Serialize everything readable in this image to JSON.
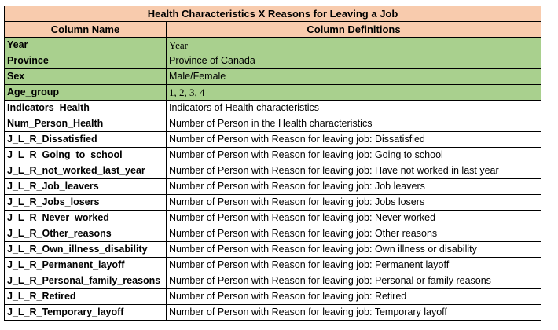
{
  "table": {
    "title": "Health Characteristics X Reasons for Leaving a Job",
    "headers": [
      "Column Name",
      "Column Definitions"
    ],
    "rows": [
      {
        "name": "Year",
        "definition": "Year",
        "highlight": true,
        "serif": true
      },
      {
        "name": "Province",
        "definition": "Province of Canada",
        "highlight": true,
        "serif": false
      },
      {
        "name": "Sex",
        "definition": "Male/Female",
        "highlight": true,
        "serif": false
      },
      {
        "name": "Age_group",
        "definition": "1, 2, 3, 4",
        "highlight": true,
        "serif": true
      },
      {
        "name": "Indicators_Health",
        "definition": "Indicators of Health characteristics",
        "highlight": false,
        "serif": false
      },
      {
        "name": "Num_Person_Health",
        "definition": "Number of Person in the Health characteristics",
        "highlight": false,
        "serif": false
      },
      {
        "name": "J_L_R_Dissatisfied",
        "definition": "Number of Person with Reason for leaving job: Dissatisfied",
        "highlight": false,
        "serif": false
      },
      {
        "name": "J_L_R_Going_to_school",
        "definition": "Number of Person with Reason for leaving job: Going to school",
        "highlight": false,
        "serif": false
      },
      {
        "name": "J_L_R_not_worked_last_year",
        "definition": "Number of Person with Reason for leaving job: Have not worked in last year",
        "highlight": false,
        "serif": false
      },
      {
        "name": "J_L_R_Job_leavers",
        "definition": "Number of Person with Reason for leaving job: Job leavers",
        "highlight": false,
        "serif": false
      },
      {
        "name": "J_L_R_Jobs_losers",
        "definition": "Number of Person with Reason for leaving job: Jobs losers",
        "highlight": false,
        "serif": false
      },
      {
        "name": "J_L_R_Never_worked",
        "definition": "Number of Person with Reason for leaving job: Never worked",
        "highlight": false,
        "serif": false
      },
      {
        "name": "J_L_R_Other_reasons",
        "definition": "Number of Person with Reason for leaving job: Other reasons",
        "highlight": false,
        "serif": false
      },
      {
        "name": "J_L_R_Own_illness_disability",
        "definition": "Number of Person with Reason for leaving job: Own illness or disability",
        "highlight": false,
        "serif": false
      },
      {
        "name": "J_L_R_Permanent_layoff",
        "definition": "Number of Person with Reason for leaving job: Permanent layoff",
        "highlight": false,
        "serif": false
      },
      {
        "name": "J_L_R_Personal_family_reasons",
        "definition": "Number of Person with Reason for leaving job: Personal or family reasons",
        "highlight": false,
        "serif": false
      },
      {
        "name": "J_L_R_Retired",
        "definition": "Number of Person with Reason for leaving job: Retired",
        "highlight": false,
        "serif": false
      },
      {
        "name": "J_L_R_Temporary_layoff",
        "definition": "Number of Person with Reason for leaving job: Temporary layoff",
        "highlight": false,
        "serif": false
      }
    ]
  },
  "colors": {
    "header_fill": "#f8cbad",
    "highlight_fill": "#a9d08e",
    "border": "#000000"
  }
}
